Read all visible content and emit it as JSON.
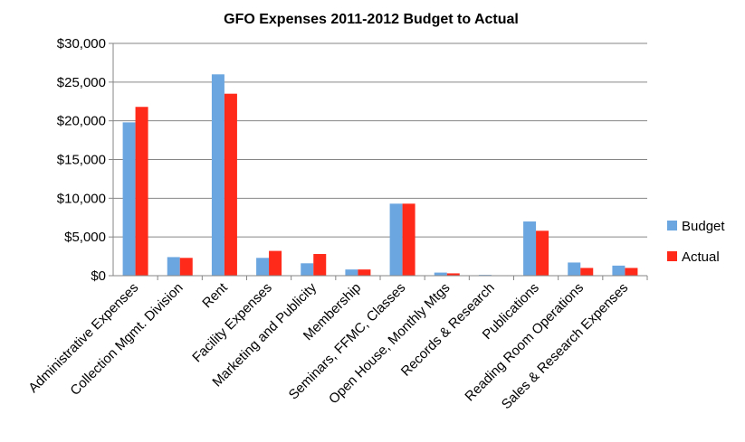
{
  "chart_data": {
    "type": "bar",
    "title": "GFO Expenses 2011-2012 Budget to Actual",
    "xlabel": "",
    "ylabel": "",
    "ylim": [
      0,
      30000
    ],
    "yticks": [
      "$0",
      "$5,000",
      "$10,000",
      "$15,000",
      "$20,000",
      "$25,000",
      "$30,000"
    ],
    "ytick_values": [
      0,
      5000,
      10000,
      15000,
      20000,
      25000,
      30000
    ],
    "grid": true,
    "legend_position": "right",
    "categories": [
      "Administrative Expenses",
      "Collection Mgmt. Division",
      "Rent",
      "Facility Expenses",
      "Marketing and Publicity",
      "Membership",
      "Seminars, FFMC, Classes",
      "Open House, Monthly Mtgs",
      "Records & Research",
      "Publications",
      "Reading Room Operations",
      "Sales & Research Expenses"
    ],
    "series": [
      {
        "name": "Budget",
        "color": "#6CA6E0",
        "values": [
          19800,
          2400,
          26000,
          2300,
          1600,
          800,
          9300,
          400,
          100,
          7000,
          1700,
          1300
        ]
      },
      {
        "name": "Actual",
        "color": "#FF2A1A",
        "values": [
          21800,
          2300,
          23500,
          3200,
          2800,
          800,
          9300,
          300,
          0,
          5800,
          1000,
          1000
        ]
      }
    ]
  }
}
